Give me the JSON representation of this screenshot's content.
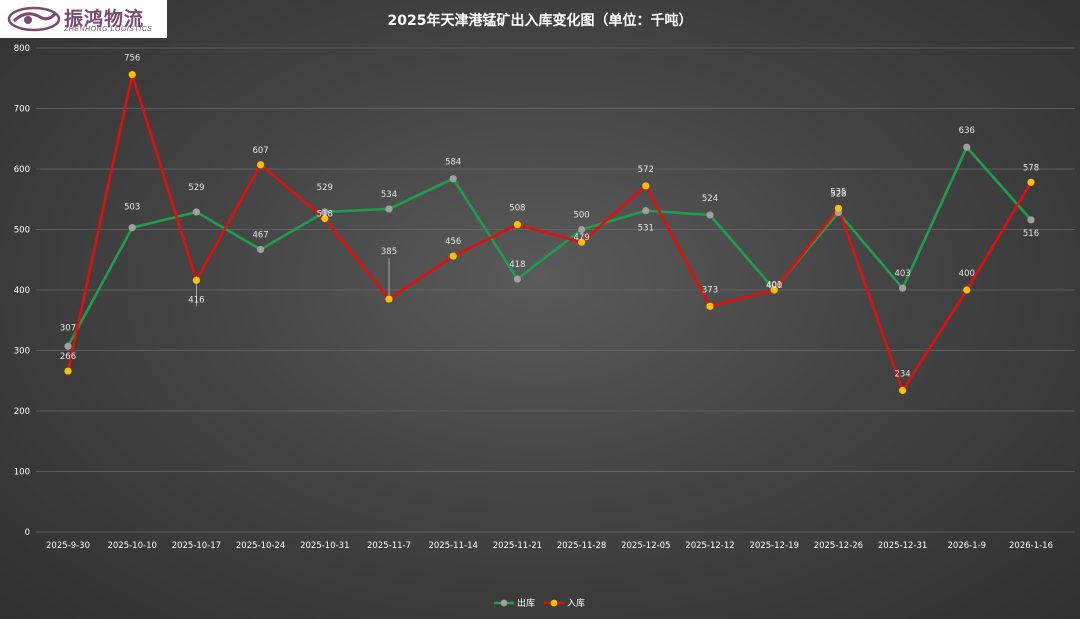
{
  "logo": {
    "brand_cn": "振鸿物流",
    "brand_en": "ZHENHONG LOGISTICS"
  },
  "chart_data": {
    "type": "line",
    "title": "2025年天津港锰矿出入库变化图（单位：千吨）",
    "xlabel": "",
    "ylabel": "",
    "categories": [
      "2025-9-30",
      "2025-10-10",
      "2025-10-17",
      "2025-10-24",
      "2025-10-31",
      "2025-11-7",
      "2025-11-14",
      "2025-11-21",
      "2025-11-28",
      "2025-12-05",
      "2025-12-12",
      "2025-12-19",
      "2025-12-26",
      "2025-12-31",
      "2026-1-9",
      "2026-1-16"
    ],
    "ylim": [
      0,
      800
    ],
    "yticks": [
      0,
      100,
      200,
      300,
      400,
      500,
      600,
      700,
      800
    ],
    "grid": true,
    "legend_position": "bottom",
    "series": [
      {
        "name": "出库",
        "line_color": "#1e9e4a",
        "marker_color": "#a0a0a0",
        "values": [
          307,
          503,
          529,
          467,
          529,
          534,
          584,
          418,
          500,
          531,
          524,
          401,
          528,
          403,
          636,
          516
        ]
      },
      {
        "name": "入库",
        "line_color": "#e01010",
        "marker_color": "#ffc000",
        "values": [
          266,
          756,
          416,
          607,
          518,
          385,
          456,
          508,
          479,
          572,
          373,
          400,
          535,
          234,
          400,
          578
        ]
      }
    ]
  }
}
